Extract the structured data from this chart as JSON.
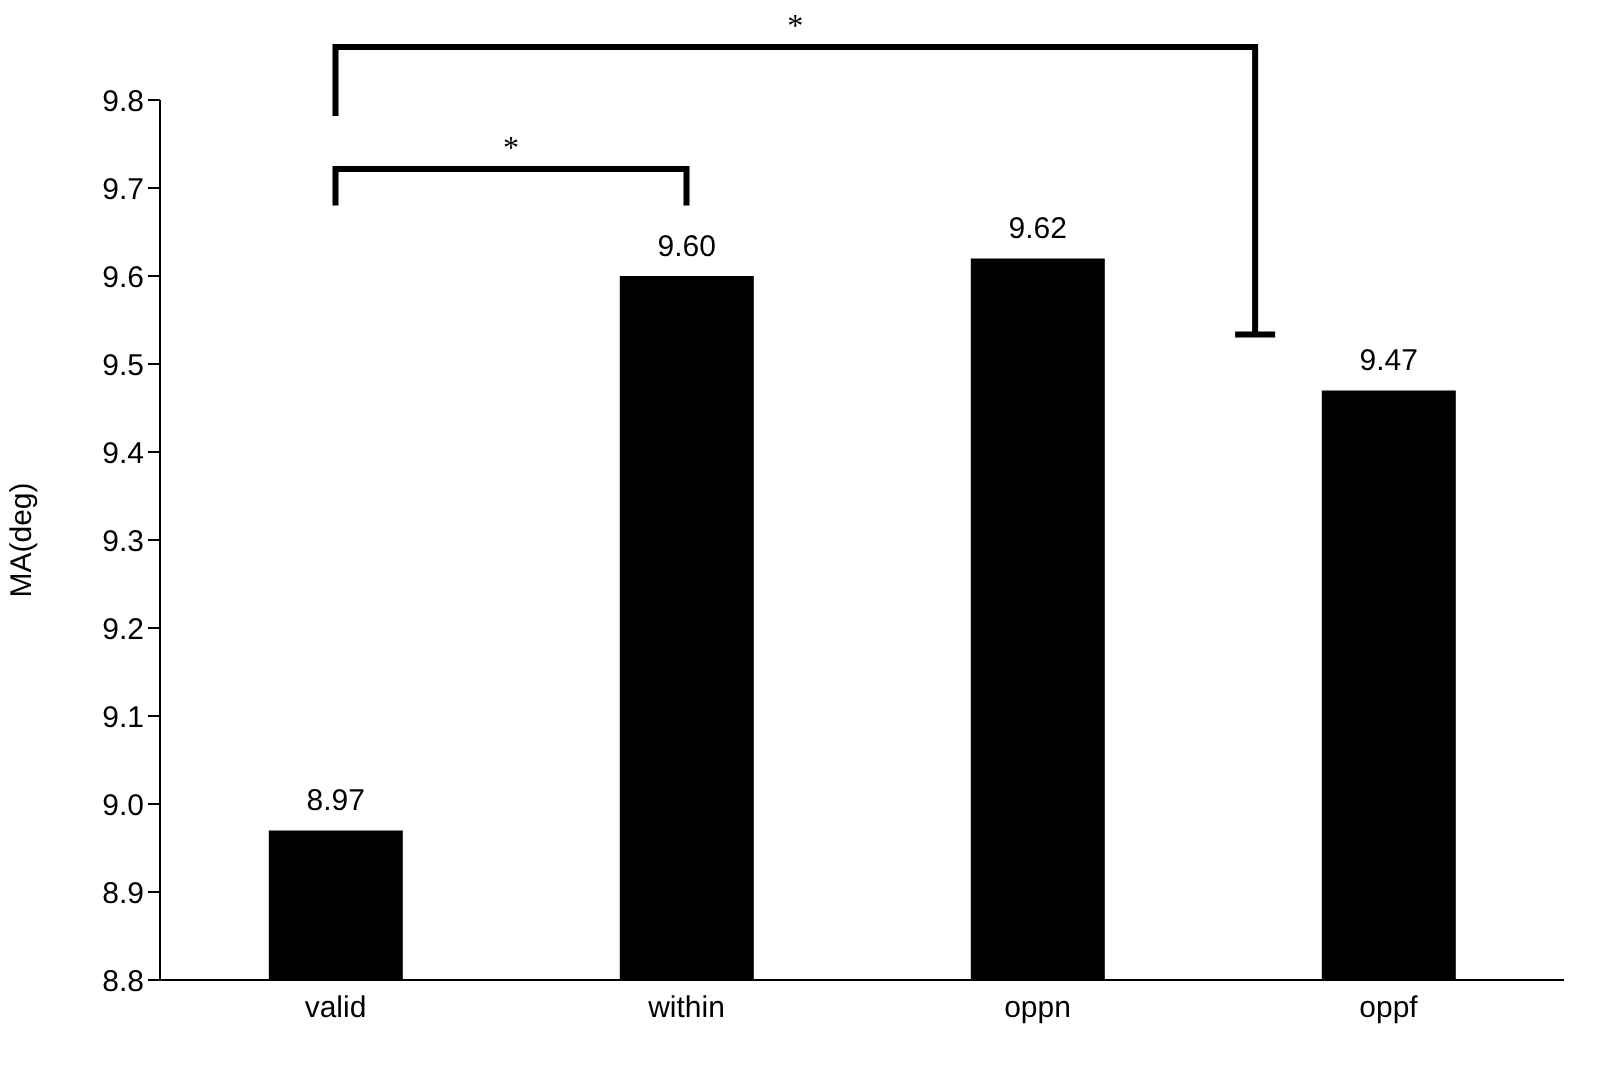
{
  "chart_data": {
    "type": "bar",
    "ylabel": "MA(deg)",
    "categories": [
      "valid",
      "within",
      "oppn",
      "oppf"
    ],
    "values": [
      8.97,
      9.6,
      9.62,
      9.47
    ],
    "value_labels": [
      "8.97",
      "9.60",
      "9.62",
      "9.47"
    ],
    "color": "#000000",
    "ylim": [
      8.8,
      9.8
    ],
    "yticks": [
      8.8,
      8.9,
      {
        "value": 9,
        "label": "9.0"
      },
      9.1,
      9.2,
      9.3,
      9.4,
      9.5,
      9.6,
      9.7,
      9.8
    ],
    "annotations": [
      "*",
      "*"
    ]
  }
}
